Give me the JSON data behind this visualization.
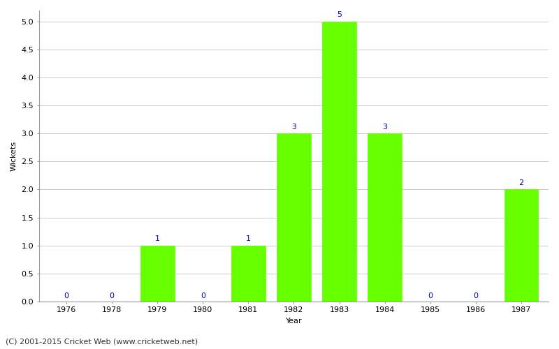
{
  "years": [
    1976,
    1978,
    1979,
    1980,
    1981,
    1982,
    1983,
    1984,
    1985,
    1986,
    1987
  ],
  "wickets": [
    0,
    0,
    1,
    0,
    1,
    3,
    5,
    3,
    0,
    0,
    2
  ],
  "bar_color": "#66ff00",
  "bar_edge_color": "#66ff00",
  "xlabel": "Year",
  "ylabel": "Wickets",
  "ylim": [
    0,
    5.2
  ],
  "yticks": [
    0.0,
    0.5,
    1.0,
    1.5,
    2.0,
    2.5,
    3.0,
    3.5,
    4.0,
    4.5,
    5.0
  ],
  "label_color": "#0000cc",
  "label_fontsize": 8,
  "axis_label_fontsize": 8,
  "tick_fontsize": 8,
  "footer_text": "(C) 2001-2015 Cricket Web (www.cricketweb.net)",
  "footer_fontsize": 8,
  "background_color": "#ffffff",
  "grid_color": "#cccccc"
}
